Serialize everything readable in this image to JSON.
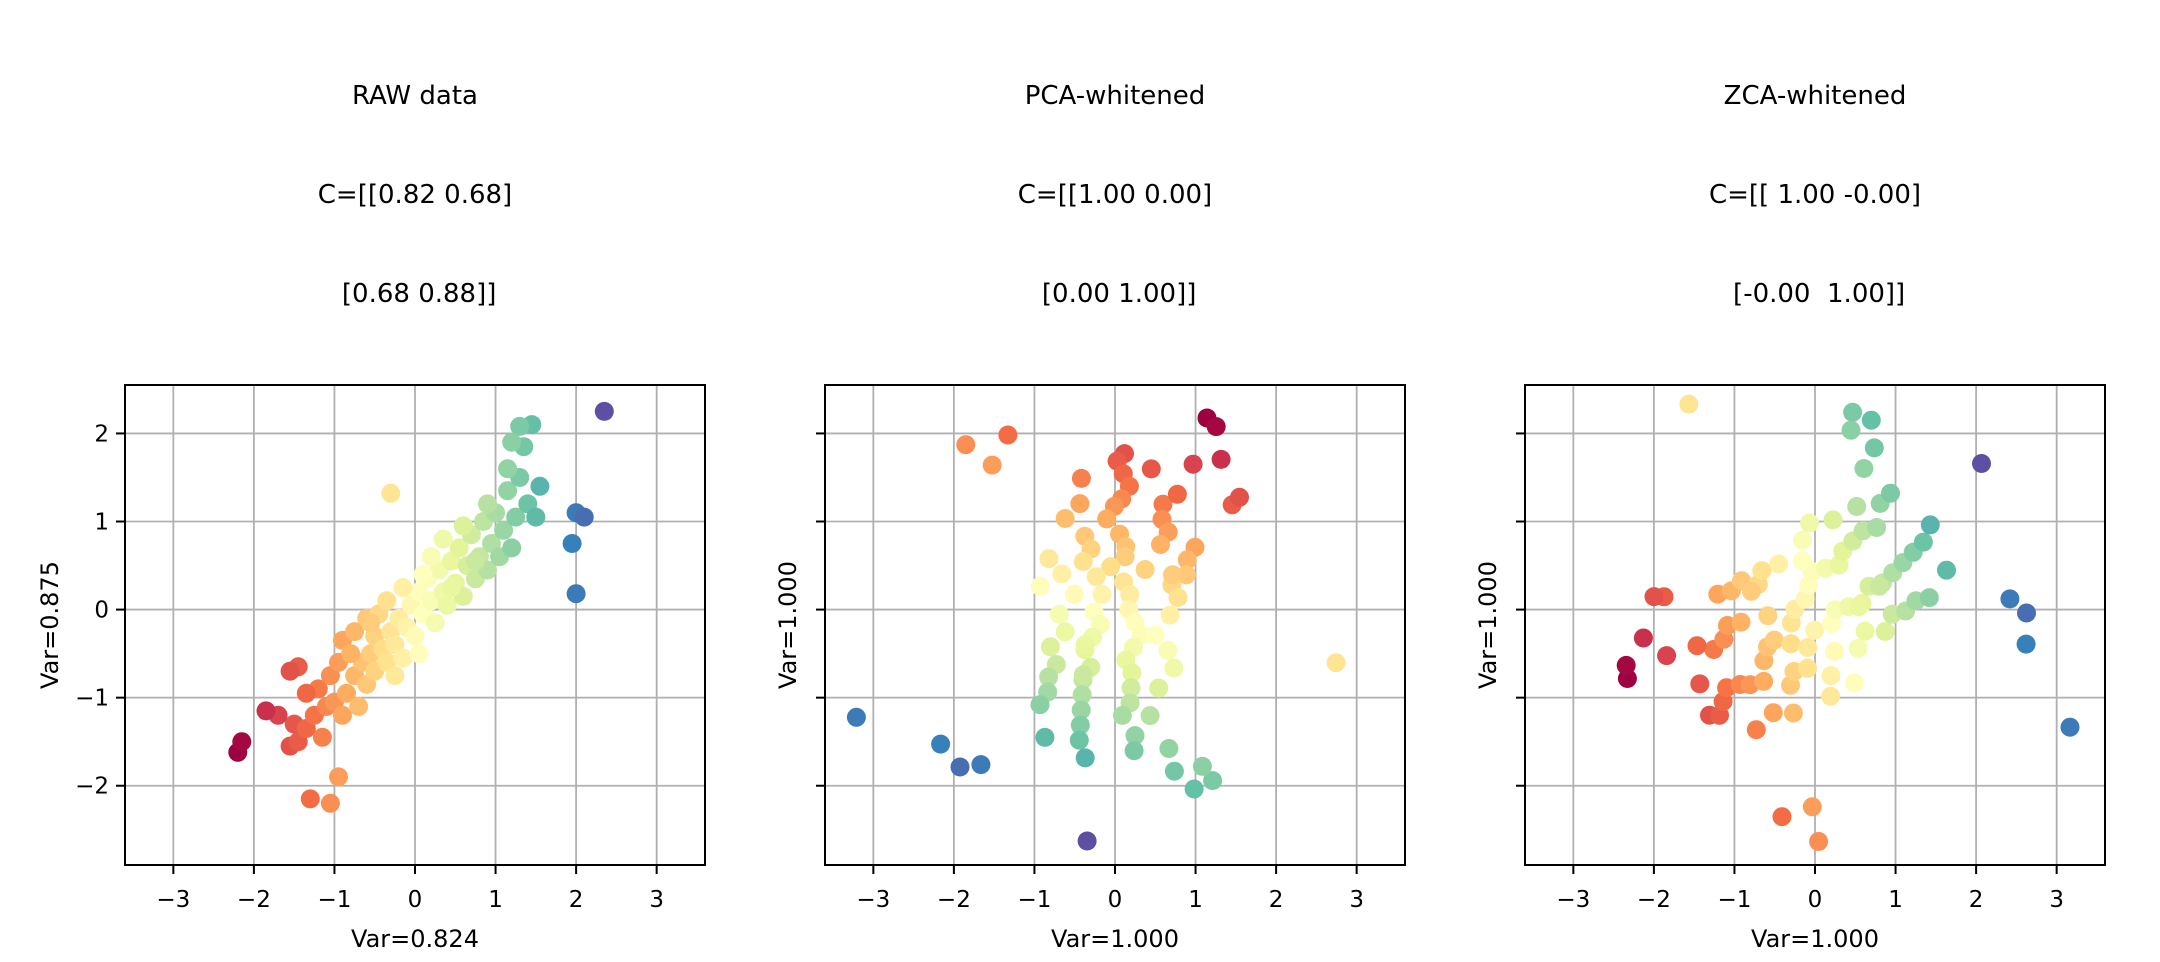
{
  "figure": {
    "background": "#ffffff",
    "text_color": "#000000"
  },
  "style": {
    "grid_color": "#b0b0b0",
    "spine_color": "#000000",
    "marker_radius": 9.5,
    "xlim": [
      -3.6,
      3.6
    ],
    "ylim": [
      -2.9,
      2.55
    ],
    "xticks": [
      -3,
      -2,
      -1,
      0,
      1,
      2,
      3
    ],
    "yticks": [
      -2,
      -1,
      0,
      1,
      2
    ],
    "colormap": {
      "name": "Spectral",
      "stops": [
        "#9e0142",
        "#d53e4f",
        "#f46d43",
        "#fdae61",
        "#fee08b",
        "#ffffbf",
        "#e6f598",
        "#abdda4",
        "#66c2a5",
        "#3288bd",
        "#5e4fa2"
      ]
    },
    "color_by": "raw_x"
  },
  "chart_data": [
    {
      "type": "scatter",
      "title_lines": [
        "RAW data",
        "C=[[0.82 0.68]",
        " [0.68 0.88]]"
      ],
      "xlabel": "Var=0.824",
      "ylabel": "Var=0.875",
      "show_ytick_labels": true,
      "grid": true,
      "points": [
        [
          -2.2,
          -1.62
        ],
        [
          -2.15,
          -1.5
        ],
        [
          -1.3,
          -2.15
        ],
        [
          -1.05,
          -2.2
        ],
        [
          -0.95,
          -1.9
        ],
        [
          -1.55,
          -1.55
        ],
        [
          -1.45,
          -1.5
        ],
        [
          -1.5,
          -1.3
        ],
        [
          -1.35,
          -1.35
        ],
        [
          -1.25,
          -1.2
        ],
        [
          -1.2,
          -0.9
        ],
        [
          -1.45,
          -0.65
        ],
        [
          -1.55,
          -0.7
        ],
        [
          -1.1,
          -1.1
        ],
        [
          -1.0,
          -1.05
        ],
        [
          -0.9,
          -1.2
        ],
        [
          -0.85,
          -0.95
        ],
        [
          -1.05,
          -0.75
        ],
        [
          -0.95,
          -0.6
        ],
        [
          -0.75,
          -0.75
        ],
        [
          -0.7,
          -1.1
        ],
        [
          -0.65,
          -0.6
        ],
        [
          -0.6,
          -0.85
        ],
        [
          -0.55,
          -0.5
        ],
        [
          -0.5,
          -0.7
        ],
        [
          -0.9,
          -0.35
        ],
        [
          -0.75,
          -0.25
        ],
        [
          -0.6,
          -0.1
        ],
        [
          -0.5,
          -0.3
        ],
        [
          -0.45,
          -0.05
        ],
        [
          -0.4,
          -0.45
        ],
        [
          -0.35,
          -0.6
        ],
        [
          -0.3,
          -0.25
        ],
        [
          -0.25,
          -0.4
        ],
        [
          -0.2,
          -0.1
        ],
        [
          -0.15,
          -0.55
        ],
        [
          -0.1,
          -0.2
        ],
        [
          -0.05,
          0.05
        ],
        [
          0.0,
          -0.3
        ],
        [
          0.05,
          0.2
        ],
        [
          0.1,
          -0.05
        ],
        [
          0.15,
          0.35
        ],
        [
          0.2,
          0.1
        ],
        [
          0.25,
          -0.15
        ],
        [
          0.3,
          0.45
        ],
        [
          0.35,
          0.2
        ],
        [
          0.4,
          0.05
        ],
        [
          0.45,
          0.55
        ],
        [
          0.5,
          0.3
        ],
        [
          0.55,
          0.7
        ],
        [
          0.6,
          0.15
        ],
        [
          0.65,
          0.5
        ],
        [
          0.7,
          0.85
        ],
        [
          0.75,
          0.35
        ],
        [
          0.8,
          0.6
        ],
        [
          0.85,
          1.0
        ],
        [
          0.9,
          0.45
        ],
        [
          0.95,
          0.75
        ],
        [
          1.0,
          1.1
        ],
        [
          1.05,
          0.6
        ],
        [
          1.1,
          0.9
        ],
        [
          1.15,
          1.35
        ],
        [
          1.2,
          0.7
        ],
        [
          1.25,
          1.05
        ],
        [
          1.3,
          1.5
        ],
        [
          1.35,
          1.85
        ],
        [
          1.45,
          2.1
        ],
        [
          1.3,
          2.08
        ],
        [
          1.2,
          1.9
        ],
        [
          1.15,
          1.6
        ],
        [
          1.4,
          1.2
        ],
        [
          1.5,
          1.05
        ],
        [
          2.0,
          1.1
        ],
        [
          2.1,
          1.05
        ],
        [
          1.95,
          0.75
        ],
        [
          2.0,
          0.18
        ],
        [
          2.35,
          2.25
        ],
        [
          0.2,
          0.6
        ],
        [
          -0.15,
          0.25
        ],
        [
          0.35,
          0.8
        ],
        [
          0.6,
          0.95
        ],
        [
          -0.35,
          0.1
        ],
        [
          -0.55,
          -0.15
        ],
        [
          0.1,
          0.4
        ],
        [
          -0.8,
          -0.5
        ],
        [
          -1.15,
          -1.45
        ],
        [
          -1.7,
          -1.2
        ],
        [
          -1.35,
          -0.95
        ],
        [
          0.45,
          0.25
        ],
        [
          0.75,
          0.55
        ],
        [
          0.9,
          1.2
        ],
        [
          -0.25,
          -0.75
        ],
        [
          0.05,
          -0.5
        ],
        [
          1.55,
          1.4
        ],
        [
          -1.85,
          -1.15
        ],
        [
          -0.3,
          1.32
        ]
      ]
    },
    {
      "type": "scatter",
      "title_lines": [
        "PCA-whitened",
        "C=[[1.00 0.00]",
        " [0.00 1.00]]"
      ],
      "xlabel": "Var=1.000",
      "ylabel": "Var=1.000",
      "show_ytick_labels": false,
      "grid": true,
      "points_source": "raw_transformed",
      "transform_of_raw": [
        [
          -1.7562,
          1.6801
        ],
        [
          -0.5588,
          -0.5841
        ]
      ]
    },
    {
      "type": "scatter",
      "title_lines": [
        "ZCA-whitened",
        "C=[[ 1.00 -0.00]",
        " [-0.00  1.00]]"
      ],
      "xlabel": "Var=1.000",
      "ylabel": "Var=1.000",
      "show_ytick_labels": false,
      "grid": true,
      "points_source": "raw_transformed",
      "transform_of_raw": [
        [
          1.6554,
          -0.8102
        ],
        [
          -0.8102,
          1.5835
        ]
      ]
    }
  ]
}
